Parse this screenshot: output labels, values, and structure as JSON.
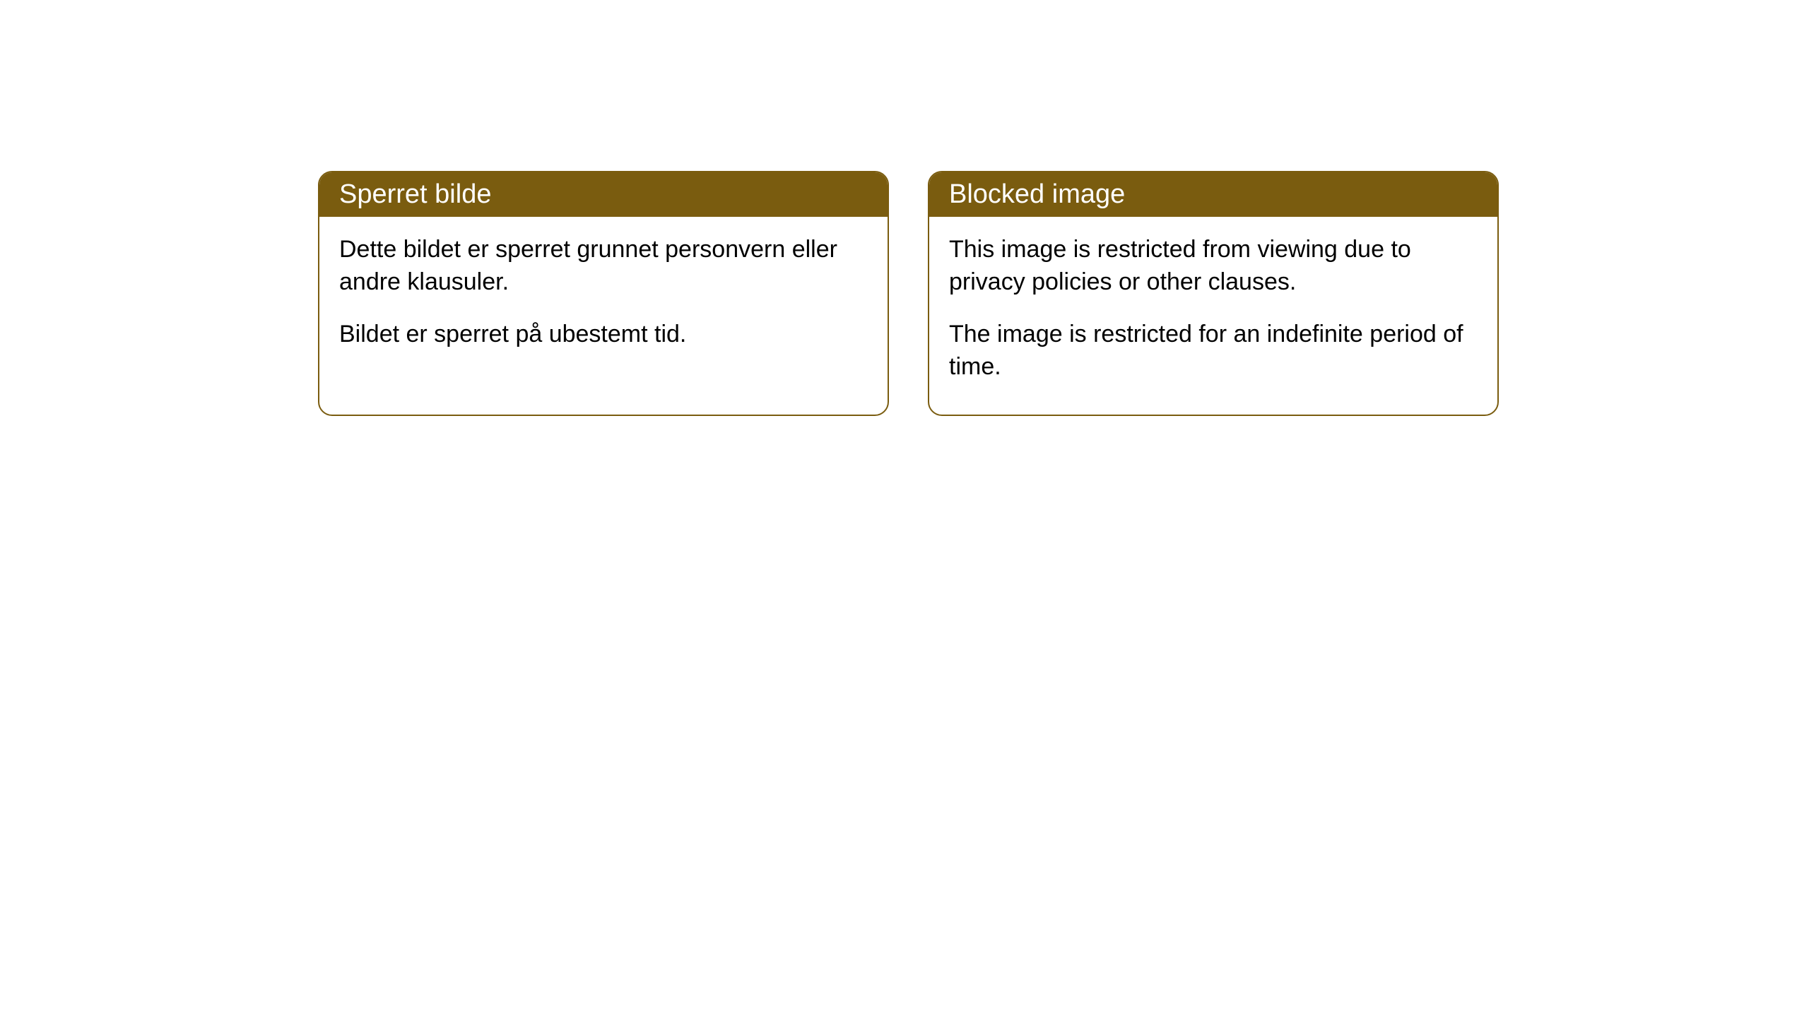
{
  "cards": [
    {
      "title": "Sperret bilde",
      "paragraph1": "Dette bildet er sperret grunnet personvern eller andre klausuler.",
      "paragraph2": "Bildet er sperret på ubestemt tid."
    },
    {
      "title": "Blocked image",
      "paragraph1": "This image is restricted from viewing due to privacy policies or other clauses.",
      "paragraph2": "The image is restricted for an indefinite period of time."
    }
  ],
  "styling": {
    "header_bg_color": "#7a5c0f",
    "header_text_color": "#ffffff",
    "border_color": "#7a5c0f",
    "card_bg_color": "#ffffff",
    "body_text_color": "#000000",
    "border_radius": 20,
    "header_fontsize": 38,
    "body_fontsize": 34
  }
}
